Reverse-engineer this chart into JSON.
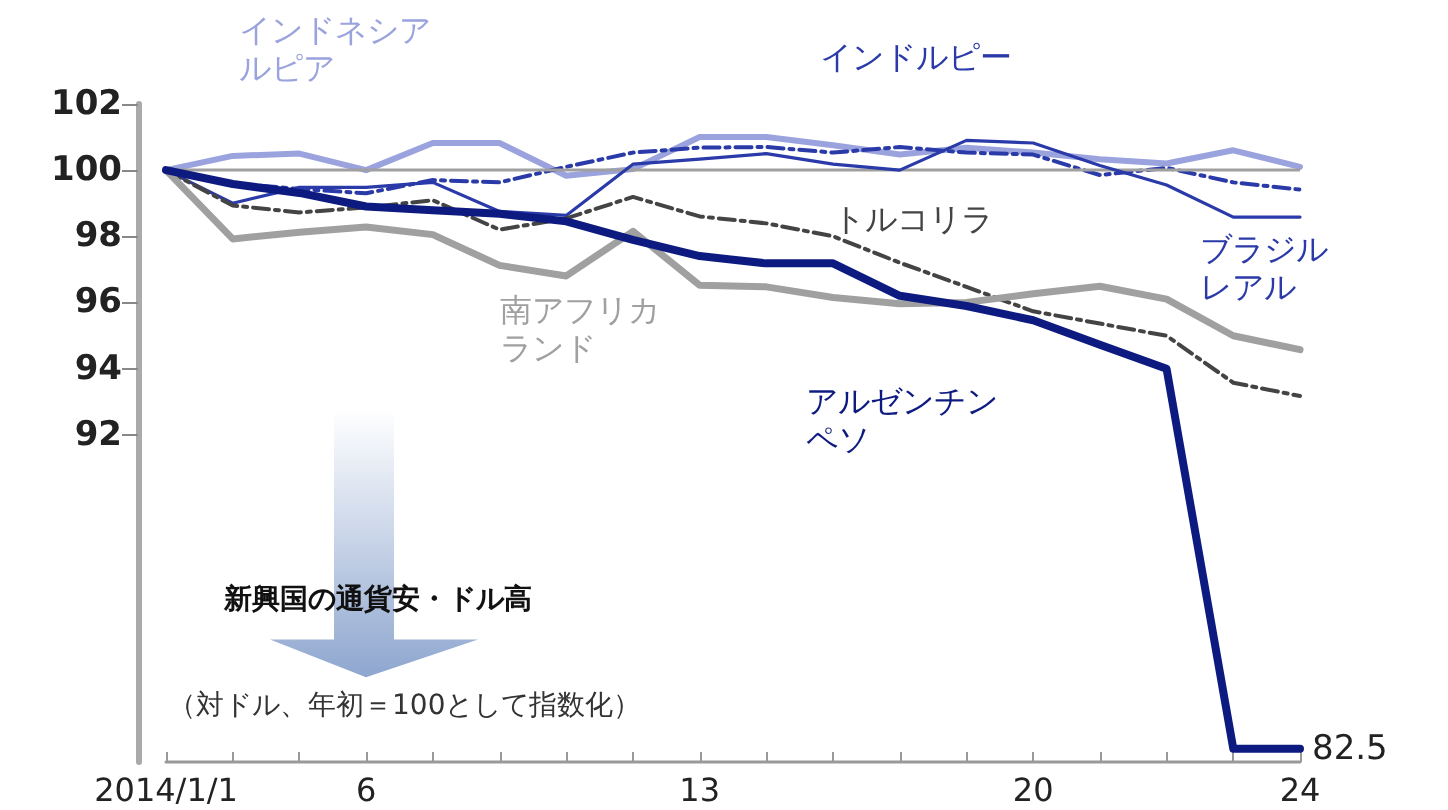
{
  "chart_data": {
    "type": "line",
    "categories": [
      "2014/1/1",
      null,
      null,
      "6",
      null,
      null,
      null,
      null,
      "13",
      null,
      null,
      null,
      null,
      "20",
      null,
      null,
      null,
      "24"
    ],
    "ylim": [
      82.1,
      102
    ],
    "yticks": [
      92,
      94,
      96,
      98,
      100,
      102
    ],
    "grid": false,
    "legend": false,
    "marker": "none",
    "series": [
      {
        "name": "インドネシアルピア",
        "color": "#9aa3dd",
        "values": [
          100,
          100.43,
          100.5,
          100,
          100.82,
          100.82,
          99.83,
          100.03,
          101.0,
          101.0,
          100.75,
          100.47,
          100.68,
          100.53,
          100.33,
          100.2,
          100.6,
          100.1
        ]
      },
      {
        "name": "インドルピー",
        "color": "#2a3aa8",
        "line_style": "dashed",
        "values": [
          100,
          99.6,
          99.43,
          99.3,
          99.7,
          99.63,
          100.1,
          100.53,
          100.68,
          100.7,
          100.53,
          100.7,
          100.53,
          100.47,
          99.85,
          100.07,
          99.63,
          99.41
        ]
      },
      {
        "name": "ブラジルレアル",
        "color": "#2a3aa8",
        "values": [
          100,
          99.0,
          99.48,
          99.48,
          99.63,
          98.75,
          98.63,
          100.18,
          100.33,
          100.5,
          100.18,
          100.0,
          100.9,
          100.82,
          100.14,
          99.55,
          98.58,
          98.58
        ]
      },
      {
        "name": "トルコリラ",
        "color": "#444444",
        "line_style": "dashed",
        "values": [
          100,
          98.93,
          98.72,
          98.87,
          99.09,
          98.2,
          98.54,
          99.19,
          98.6,
          98.39,
          98.0,
          97.2,
          96.47,
          95.73,
          95.36,
          94.99,
          93.57,
          93.17
        ]
      },
      {
        "name": "南アフリカランド",
        "color": "#a0a0a0",
        "values": [
          100,
          97.92,
          98.12,
          98.28,
          98.05,
          97.12,
          96.8,
          98.15,
          96.52,
          96.47,
          96.15,
          95.96,
          96.0,
          96.26,
          96.49,
          96.1,
          94.99,
          94.57
        ]
      },
      {
        "name": "アルゼンチンペソ",
        "color": "#0d1a80",
        "values": [
          100,
          99.58,
          99.31,
          98.9,
          98.79,
          98.68,
          98.45,
          97.89,
          97.4,
          97.18,
          97.18,
          96.2,
          95.89,
          95.46,
          94.72,
          93.99,
          82.5,
          82.5
        ],
        "value_labels": [
          null,
          null,
          null,
          null,
          null,
          null,
          null,
          null,
          null,
          null,
          null,
          null,
          null,
          null,
          null,
          null,
          null,
          "82.5"
        ]
      }
    ],
    "ref_lines": [
      {
        "axis": "y",
        "value": 100,
        "color": "#a0a0a0"
      }
    ],
    "annotations": [
      "新興国の通貨安・ドル高",
      "（対ドル、年初＝100として指数化）"
    ]
  }
}
